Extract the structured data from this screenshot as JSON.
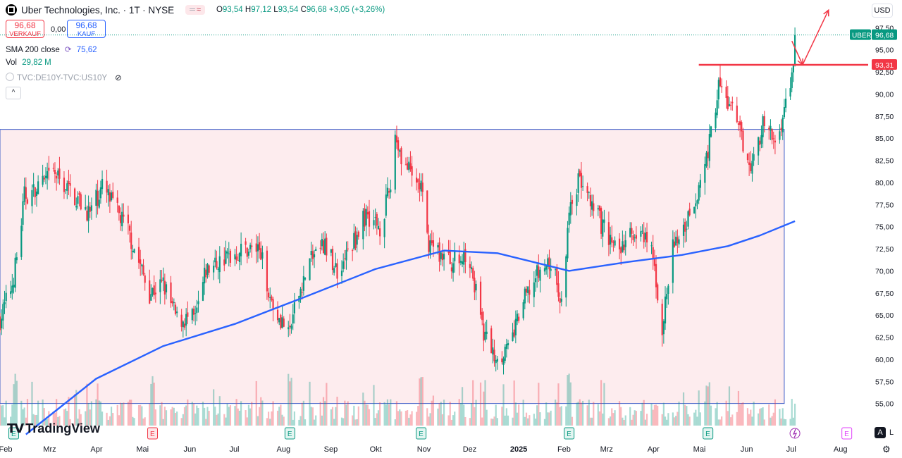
{
  "header": {
    "title": "Uber Technologies, Inc. · 1T · NYSE",
    "mini_label": "≈",
    "ohlc": {
      "o_label": "O",
      "o": "93,54",
      "h_label": "H",
      "h": "97,12",
      "l_label": "L",
      "l": "93,54",
      "c_label": "C",
      "c": "96,68",
      "change": "+3,05 (+3,26%)"
    },
    "currency": "USD"
  },
  "trade": {
    "sell_price": "96,68",
    "sell_label": "VERKAUF",
    "spread": "0,00",
    "buy_price": "96,68",
    "buy_label": "KAUF"
  },
  "indicators": {
    "sma_label": "SMA 200 close",
    "sma_value": "75,62",
    "vol_label": "Vol",
    "vol_value": "29,82 M",
    "compare_label": "TVC:DE10Y-TVC:US10Y"
  },
  "brand": "TradingView",
  "scale_buttons": {
    "auto": "A",
    "log": "L"
  },
  "colors": {
    "up": "#089981",
    "down": "#f23645",
    "sma": "#2962ff",
    "box_fill": "#fdecee",
    "box_border": "#3a5bc7",
    "annotation": "#f23645"
  },
  "chart_data": {
    "type": "candlestick",
    "title": "Uber Technologies, Inc. · 1T · NYSE",
    "timeframe": "1T",
    "ylim": [
      52.5,
      100
    ],
    "y_ticks": [
      "97,50",
      "95,00",
      "92,50",
      "90,00",
      "87,50",
      "85,00",
      "82,50",
      "80,00",
      "77,50",
      "75,00",
      "72,50",
      "70,00",
      "67,50",
      "65,00",
      "62,50",
      "60,00",
      "57,50",
      "55,00"
    ],
    "x_ticks": [
      "Feb",
      "Mrz",
      "Apr",
      "Mai",
      "Jun",
      "Jul",
      "Aug",
      "Sep",
      "Okt",
      "Nov",
      "Dez",
      "2025",
      "Feb",
      "Mrz",
      "Apr",
      "Mai",
      "Jun",
      "Jul",
      "Aug"
    ],
    "price_path": [
      [
        "2024-01-29",
        64.5
      ],
      [
        "2024-02-06",
        68.5
      ],
      [
        "2024-02-10",
        72.5
      ],
      [
        "2024-02-14",
        78.5
      ],
      [
        "2024-02-22",
        79.0
      ],
      [
        "2024-03-04",
        81.0
      ],
      [
        "2024-03-15",
        79.0
      ],
      [
        "2024-03-28",
        76.5
      ],
      [
        "2024-04-05",
        79.5
      ],
      [
        "2024-04-12",
        77.5
      ],
      [
        "2024-04-22",
        74.5
      ],
      [
        "2024-04-30",
        70.5
      ],
      [
        "2024-05-06",
        67.5
      ],
      [
        "2024-05-15",
        68.5
      ],
      [
        "2024-05-24",
        64.5
      ],
      [
        "2024-06-05",
        64.5
      ],
      [
        "2024-06-12",
        70.0
      ],
      [
        "2024-06-25",
        71.5
      ],
      [
        "2024-07-08",
        72.5
      ],
      [
        "2024-07-17",
        72.5
      ],
      [
        "2024-07-25",
        66.5
      ],
      [
        "2024-08-02",
        64.0
      ],
      [
        "2024-08-05",
        62.5
      ],
      [
        "2024-08-12",
        67.5
      ],
      [
        "2024-08-20",
        71.5
      ],
      [
        "2024-08-28",
        73.0
      ],
      [
        "2024-09-06",
        70.0
      ],
      [
        "2024-09-16",
        73.0
      ],
      [
        "2024-09-25",
        76.5
      ],
      [
        "2024-10-04",
        75.0
      ],
      [
        "2024-10-11",
        79.5
      ],
      [
        "2024-10-14",
        85.5
      ],
      [
        "2024-10-18",
        83.0
      ],
      [
        "2024-10-25",
        80.5
      ],
      [
        "2024-10-31",
        79.5
      ],
      [
        "2024-11-04",
        73.5
      ],
      [
        "2024-11-12",
        72.0
      ],
      [
        "2024-11-20",
        71.0
      ],
      [
        "2024-12-02",
        71.5
      ],
      [
        "2024-12-10",
        63.5
      ],
      [
        "2024-12-18",
        60.5
      ],
      [
        "2024-12-27",
        61.0
      ],
      [
        "2025-01-06",
        66.5
      ],
      [
        "2025-01-15",
        69.5
      ],
      [
        "2025-01-24",
        71.0
      ],
      [
        "2025-01-31",
        66.5
      ],
      [
        "2025-02-06",
        78.0
      ],
      [
        "2025-02-12",
        80.5
      ],
      [
        "2025-02-20",
        77.0
      ],
      [
        "2025-03-03",
        74.0
      ],
      [
        "2025-03-10",
        72.0
      ],
      [
        "2025-03-19",
        74.5
      ],
      [
        "2025-03-31",
        72.5
      ],
      [
        "2025-04-07",
        63.5
      ],
      [
        "2025-04-14",
        72.5
      ],
      [
        "2025-04-25",
        76.5
      ],
      [
        "2025-05-02",
        80.0
      ],
      [
        "2025-05-08",
        84.5
      ],
      [
        "2025-05-14",
        91.0
      ],
      [
        "2025-05-23",
        88.0
      ],
      [
        "2025-05-30",
        84.5
      ],
      [
        "2025-06-05",
        82.0
      ],
      [
        "2025-06-12",
        86.5
      ],
      [
        "2025-06-20",
        84.5
      ],
      [
        "2025-06-25",
        87.5
      ],
      [
        "2025-07-01",
        92.0
      ],
      [
        "2025-07-03",
        96.68
      ]
    ],
    "sma_200": [
      [
        "2024-02-15",
        51.5
      ],
      [
        "2024-04-01",
        57.8
      ],
      [
        "2024-05-15",
        61.5
      ],
      [
        "2024-07-01",
        64.0
      ],
      [
        "2024-08-15",
        67.0
      ],
      [
        "2024-10-01",
        70.2
      ],
      [
        "2024-11-15",
        72.3
      ],
      [
        "2024-12-20",
        72.0
      ],
      [
        "2025-02-05",
        70.0
      ],
      [
        "2025-03-15",
        71.0
      ],
      [
        "2025-04-20",
        71.8
      ],
      [
        "2025-05-20",
        72.8
      ],
      [
        "2025-06-10",
        74.0
      ],
      [
        "2025-07-03",
        75.62
      ]
    ],
    "sma_last": 75.62,
    "last_price": 96.68,
    "horizontal_level": 93.31,
    "volume_spikes": [
      "2024-02-08",
      "2024-05-08",
      "2024-08-06",
      "2024-10-31",
      "2025-02-05",
      "2025-05-07"
    ],
    "range_box": {
      "start": "2024-01-29",
      "end": "2025-06-26",
      "low": 55.0,
      "high": 86.0
    },
    "earnings_markers": [
      {
        "date": "2024-02-07",
        "label": "E",
        "type": "past"
      },
      {
        "date": "2024-05-08",
        "label": "E",
        "type": "past-negative"
      },
      {
        "date": "2024-08-06",
        "label": "E",
        "type": "past"
      },
      {
        "date": "2024-10-31",
        "label": "E",
        "type": "past"
      },
      {
        "date": "2025-02-05",
        "label": "E",
        "type": "past"
      },
      {
        "date": "2025-05-07",
        "label": "E",
        "type": "past"
      },
      {
        "date": "2025-08-06",
        "label": "E",
        "type": "upcoming"
      }
    ],
    "scenario_arrows": [
      {
        "from": [
          "2025-07-01",
          96.0
        ],
        "to": [
          "2025-07-08",
          93.31
        ]
      },
      {
        "from": [
          "2025-07-08",
          93.31
        ],
        "to": [
          "2025-07-25",
          99.5
        ]
      }
    ],
    "price_labels": {
      "symbol": "UBER",
      "last": "96,68",
      "level": "93,31"
    },
    "grid": false
  }
}
